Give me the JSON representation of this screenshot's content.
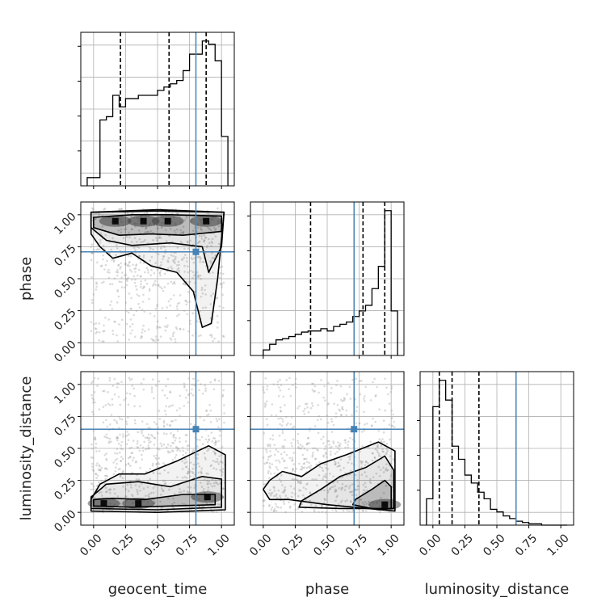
{
  "chart_data": {
    "type": "corner",
    "parameters": [
      "geocent_time",
      "phase",
      "luminosity_distance"
    ],
    "axis_labels": {
      "geocent_time": "geocent_time",
      "phase": "phase",
      "luminosity_distance": "luminosity_distance"
    },
    "tick_values": [
      0.0,
      0.25,
      0.5,
      0.75,
      1.0
    ],
    "tick_labels": [
      "0.00",
      "0.25",
      "0.50",
      "0.75",
      "1.00"
    ],
    "axis_range": [
      -0.1,
      1.1
    ],
    "grid": true,
    "truths": {
      "geocent_time": 0.8,
      "phase": 0.71,
      "luminosity_distance": 0.65
    },
    "truth_color": "#4682b4",
    "quantiles": {
      "geocent_time": [
        0.21,
        0.59,
        0.88
      ],
      "phase": [
        0.37,
        0.78,
        0.95
      ],
      "luminosity_distance": [
        0.05,
        0.15,
        0.36
      ]
    },
    "histograms": {
      "geocent_time": {
        "edges": [
          -0.05,
          0.0,
          0.05,
          0.1,
          0.15,
          0.2,
          0.25,
          0.3,
          0.35,
          0.4,
          0.45,
          0.5,
          0.55,
          0.6,
          0.65,
          0.7,
          0.75,
          0.8,
          0.85,
          0.9,
          0.95,
          1.0,
          1.05
        ],
        "counts": [
          5,
          5,
          40,
          42,
          55,
          48,
          53,
          53,
          55,
          55,
          55,
          58,
          60,
          62,
          64,
          70,
          80,
          80,
          88,
          86,
          76,
          30
        ]
      },
      "phase": {
        "edges": [
          0.0,
          0.05,
          0.1,
          0.15,
          0.2,
          0.25,
          0.3,
          0.35,
          0.4,
          0.45,
          0.5,
          0.55,
          0.6,
          0.65,
          0.7,
          0.75,
          0.8,
          0.85,
          0.9,
          0.95,
          1.0,
          1.05
        ],
        "counts": [
          5,
          10,
          14,
          15,
          17,
          19,
          21,
          22,
          22,
          24,
          22,
          26,
          28,
          30,
          35,
          40,
          45,
          60,
          80,
          130,
          40
        ]
      },
      "luminosity_distance": {
        "edges": [
          -0.05,
          0.0,
          0.05,
          0.1,
          0.15,
          0.2,
          0.25,
          0.3,
          0.35,
          0.4,
          0.45,
          0.5,
          0.55,
          0.6,
          0.65,
          0.7,
          0.75,
          0.8,
          0.85,
          0.9,
          0.95,
          1.0,
          1.05
        ],
        "counts": [
          20,
          90,
          110,
          95,
          60,
          50,
          38,
          32,
          25,
          20,
          12,
          10,
          7,
          5,
          3,
          2,
          1,
          1,
          0,
          0,
          0,
          0
        ]
      }
    },
    "panels_2d": [
      {
        "x": "geocent_time",
        "y": "phase",
        "density_peaks": [
          [
            0.17,
            0.95
          ],
          [
            0.39,
            0.95
          ],
          [
            0.58,
            0.95
          ],
          [
            0.88,
            0.95
          ]
        ],
        "contours": [
          [
            [
              0.0,
              0.98
            ],
            [
              0.3,
              1.0
            ],
            [
              0.6,
              1.0
            ],
            [
              1.0,
              0.99
            ],
            [
              1.0,
              0.87
            ],
            [
              0.7,
              0.84
            ],
            [
              0.45,
              0.85
            ],
            [
              0.2,
              0.84
            ],
            [
              0.0,
              0.9
            ]
          ],
          [
            [
              -0.02,
              1.02
            ],
            [
              0.5,
              1.03
            ],
            [
              1.02,
              1.02
            ],
            [
              1.0,
              0.75
            ],
            [
              0.9,
              0.55
            ],
            [
              0.85,
              0.75
            ],
            [
              0.6,
              0.78
            ],
            [
              0.3,
              0.76
            ],
            [
              0.1,
              0.8
            ],
            [
              -0.02,
              0.9
            ]
          ],
          [
            [
              -0.02,
              1.02
            ],
            [
              0.5,
              1.04
            ],
            [
              1.02,
              1.02
            ],
            [
              0.97,
              0.5
            ],
            [
              0.92,
              0.15
            ],
            [
              0.85,
              0.12
            ],
            [
              0.78,
              0.4
            ],
            [
              0.65,
              0.55
            ],
            [
              0.45,
              0.6
            ],
            [
              0.3,
              0.7
            ],
            [
              0.15,
              0.66
            ],
            [
              0.05,
              0.75
            ],
            [
              -0.02,
              0.85
            ]
          ]
        ]
      },
      {
        "x": "geocent_time",
        "y": "luminosity_distance",
        "density_peaks": [
          [
            0.08,
            0.07
          ],
          [
            0.35,
            0.07
          ],
          [
            0.89,
            0.12
          ]
        ],
        "contours": [
          [
            [
              0.0,
              0.05
            ],
            [
              0.3,
              0.04
            ],
            [
              0.6,
              0.05
            ],
            [
              0.95,
              0.06
            ],
            [
              0.95,
              0.14
            ],
            [
              0.7,
              0.14
            ],
            [
              0.4,
              0.1
            ],
            [
              0.15,
              0.11
            ],
            [
              0.0,
              0.1
            ]
          ],
          [
            [
              -0.02,
              0.03
            ],
            [
              0.5,
              0.02
            ],
            [
              1.0,
              0.04
            ],
            [
              1.0,
              0.26
            ],
            [
              0.85,
              0.28
            ],
            [
              0.6,
              0.2
            ],
            [
              0.35,
              0.24
            ],
            [
              0.1,
              0.22
            ],
            [
              -0.02,
              0.12
            ]
          ],
          [
            [
              -0.02,
              0.01
            ],
            [
              0.5,
              0.0
            ],
            [
              1.03,
              0.02
            ],
            [
              1.03,
              0.45
            ],
            [
              0.9,
              0.52
            ],
            [
              0.65,
              0.4
            ],
            [
              0.4,
              0.3
            ],
            [
              0.2,
              0.3
            ],
            [
              0.05,
              0.22
            ],
            [
              -0.02,
              0.1
            ]
          ]
        ]
      },
      {
        "x": "phase",
        "y": "luminosity_distance",
        "density_peaks": [
          [
            0.95,
            0.06
          ]
        ],
        "contours": [
          [
            [
              0.7,
              0.06
            ],
            [
              0.9,
              0.02
            ],
            [
              1.0,
              0.03
            ],
            [
              1.0,
              0.2
            ],
            [
              0.95,
              0.25
            ],
            [
              0.85,
              0.18
            ],
            [
              0.72,
              0.1
            ]
          ],
          [
            [
              0.28,
              0.04
            ],
            [
              0.6,
              0.03
            ],
            [
              1.02,
              0.03
            ],
            [
              1.02,
              0.33
            ],
            [
              0.95,
              0.44
            ],
            [
              0.8,
              0.35
            ],
            [
              0.6,
              0.28
            ],
            [
              0.45,
              0.18
            ],
            [
              0.3,
              0.09
            ]
          ],
          [
            [
              0.0,
              0.18
            ],
            [
              0.05,
              0.1
            ],
            [
              0.2,
              0.1
            ],
            [
              0.5,
              0.06
            ],
            [
              1.03,
              0.01
            ],
            [
              1.03,
              0.48
            ],
            [
              0.9,
              0.55
            ],
            [
              0.65,
              0.45
            ],
            [
              0.45,
              0.38
            ],
            [
              0.3,
              0.28
            ],
            [
              0.15,
              0.32
            ],
            [
              0.05,
              0.25
            ]
          ]
        ]
      }
    ]
  }
}
